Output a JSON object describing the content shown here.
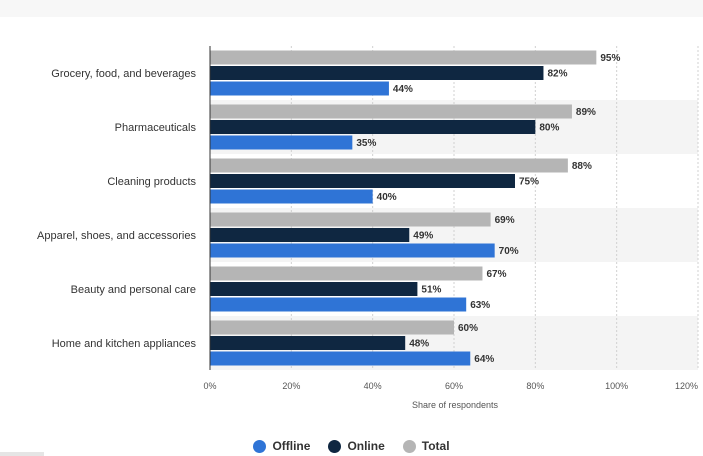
{
  "chart_data": {
    "type": "bar",
    "orientation": "horizontal",
    "categories": [
      "Grocery, food, and beverages",
      "Pharmaceuticals",
      "Cleaning products",
      "Apparel, shoes, and accessories",
      "Beauty and personal care",
      "Home and kitchen appliances"
    ],
    "series": [
      {
        "name": "Total",
        "color": "#b5b5b5",
        "values": [
          95,
          89,
          88,
          69,
          67,
          60
        ]
      },
      {
        "name": "Online",
        "color": "#0f2741",
        "values": [
          82,
          80,
          75,
          49,
          51,
          48
        ]
      },
      {
        "name": "Offline",
        "color": "#2f74d6",
        "values": [
          44,
          35,
          40,
          70,
          63,
          64
        ]
      }
    ],
    "legend_order": [
      "Offline",
      "Online",
      "Total"
    ],
    "xlabel": "Share of respondents",
    "xlim": [
      0,
      120
    ],
    "xticks": [
      "0%",
      "20%",
      "40%",
      "60%",
      "80%",
      "100%",
      "120%"
    ],
    "value_suffix": "%",
    "grid": true,
    "legend_position": "bottom-center"
  }
}
